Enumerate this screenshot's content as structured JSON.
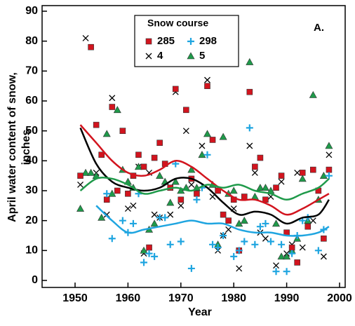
{
  "chart_data": {
    "type": "scatter",
    "xlabel": "Year",
    "ylabel": [
      "April water content of snow,",
      "inches"
    ],
    "annotation": "A.",
    "legend_title": "Snow course",
    "legend": "top-center",
    "xlim": [
      1950,
      2000
    ],
    "xticks": [
      1950,
      1960,
      1970,
      1980,
      1990,
      2000
    ],
    "ylim": [
      0,
      90
    ],
    "yticks": [
      0,
      10,
      20,
      30,
      40,
      50,
      60,
      70,
      80,
      90
    ],
    "trend_x": [
      1951,
      1954,
      1957,
      1960,
      1963,
      1966,
      1969,
      1972,
      1975,
      1978,
      1981,
      1984,
      1987,
      1990,
      1993,
      1996,
      1998
    ],
    "series": [
      {
        "name": "285",
        "color": "#d2141e",
        "marker": "square",
        "x": [
          1951,
          1953,
          1954,
          1955,
          1956,
          1957,
          1958,
          1959,
          1960,
          1961,
          1962,
          1963,
          1964,
          1965,
          1966,
          1967,
          1968,
          1969,
          1970,
          1971,
          1972,
          1973,
          1975,
          1976,
          1977,
          1978,
          1979,
          1980,
          1981,
          1982,
          1983,
          1984,
          1985,
          1986,
          1988,
          1989,
          1990,
          1991,
          1992,
          1993,
          1994,
          1995,
          1996,
          1997,
          1998
        ],
        "values": [
          35,
          78,
          52,
          42,
          27,
          58,
          30,
          50,
          29,
          35,
          42,
          38,
          11,
          41,
          46,
          39,
          31,
          64,
          27,
          57,
          34,
          29,
          65,
          47,
          30,
          22,
          20,
          27,
          10,
          28,
          63,
          38,
          41,
          27,
          31,
          35,
          16,
          11,
          6,
          36,
          18,
          37,
          30,
          14,
          37
        ],
        "trend": [
          52,
          46,
          40,
          36,
          35,
          37,
          40,
          38,
          34,
          30,
          27,
          27,
          25,
          22,
          24,
          27,
          29
        ]
      },
      {
        "name": "298",
        "color": "#1fa5e0",
        "marker": "plus",
        "x": [
          1956,
          1957,
          1959,
          1960,
          1961,
          1962,
          1963,
          1964,
          1965,
          1966,
          1967,
          1968,
          1969,
          1970,
          1972,
          1973,
          1974,
          1975,
          1976,
          1977,
          1978,
          1980,
          1981,
          1982,
          1983,
          1984,
          1985,
          1986,
          1987,
          1988,
          1989,
          1990,
          1991,
          1992,
          1993,
          1994,
          1996,
          1997,
          1998
        ],
        "values": [
          29,
          14,
          20,
          16,
          19,
          29,
          6,
          9,
          8,
          21,
          21,
          12,
          39,
          13,
          4,
          27,
          31,
          42,
          12,
          11,
          15,
          8,
          10,
          13,
          51,
          12,
          18,
          19,
          13,
          3,
          12,
          3,
          9,
          15,
          20,
          21,
          10,
          17,
          35
        ],
        "trend": [
          null,
          25,
          20,
          16,
          17,
          18,
          19,
          20,
          19,
          19,
          17,
          16,
          16,
          15,
          15,
          16,
          18
        ]
      },
      {
        "name": "4",
        "color": "#000000",
        "marker": "x",
        "x": [
          1951,
          1952,
          1954,
          1956,
          1957,
          1959,
          1960,
          1961,
          1962,
          1963,
          1964,
          1965,
          1966,
          1968,
          1969,
          1970,
          1971,
          1972,
          1974,
          1975,
          1976,
          1977,
          1978,
          1979,
          1980,
          1981,
          1983,
          1984,
          1985,
          1986,
          1987,
          1988,
          1989,
          1990,
          1991,
          1992,
          1993,
          1995,
          1997,
          1998
        ],
        "values": [
          32,
          81,
          36,
          22,
          61,
          50,
          24,
          25,
          38,
          9,
          36,
          22,
          21,
          22,
          63,
          25,
          50,
          32,
          45,
          67,
          28,
          10,
          15,
          17,
          24,
          4,
          45,
          36,
          16,
          14,
          28,
          5,
          33,
          9,
          12,
          36,
          11,
          20,
          8,
          42
        ],
        "trend": [
          51,
          39,
          33,
          31,
          30,
          31,
          34,
          34,
          31,
          26,
          22,
          23,
          22,
          19,
          21,
          22,
          27
        ]
      },
      {
        "name": "5",
        "color": "#1f9a4a",
        "marker": "triangle",
        "x": [
          1951,
          1952,
          1953,
          1954,
          1955,
          1956,
          1957,
          1958,
          1959,
          1960,
          1961,
          1962,
          1963,
          1964,
          1965,
          1966,
          1967,
          1968,
          1969,
          1970,
          1971,
          1972,
          1973,
          1974,
          1975,
          1976,
          1977,
          1978,
          1979,
          1980,
          1981,
          1982,
          1983,
          1984,
          1985,
          1986,
          1987,
          1988,
          1989,
          1990,
          1991,
          1992,
          1993,
          1994,
          1995,
          1996,
          1997,
          1998
        ],
        "values": [
          24,
          36,
          36,
          35,
          21,
          49,
          29,
          57,
          37,
          33,
          31,
          38,
          10,
          17,
          19,
          35,
          33,
          26,
          33,
          30,
          31,
          37,
          31,
          42,
          49,
          32,
          12,
          48,
          29,
          30,
          19,
          20,
          73,
          28,
          31,
          31,
          30,
          19,
          8,
          8,
          10,
          14,
          34,
          20,
          62,
          27,
          35,
          45
        ],
        "trend": [
          30,
          34,
          34,
          32,
          29,
          30,
          31,
          30,
          32,
          31,
          32,
          30,
          29,
          27,
          29,
          31,
          34
        ]
      }
    ]
  }
}
